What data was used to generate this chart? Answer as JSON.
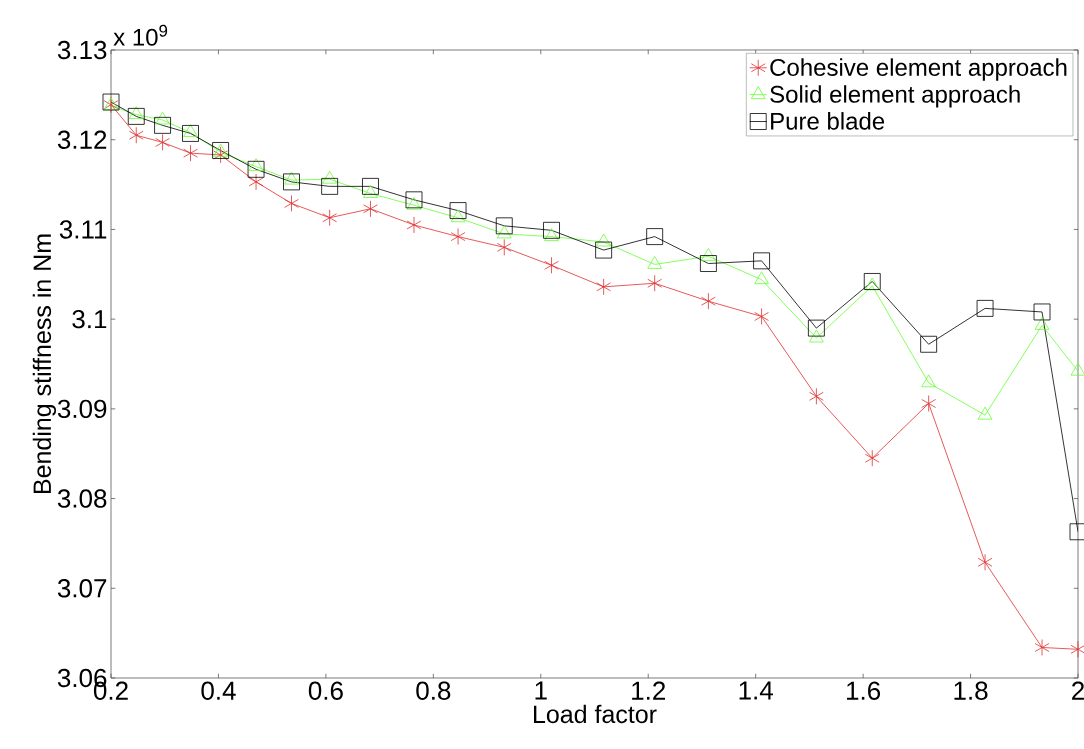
{
  "chart_data": {
    "type": "line",
    "xlabel": "Load factor",
    "ylabel": "Bending stiffness in Nm",
    "annotations": [
      "x 10$^{9}$"
    ],
    "x": [
      0.2,
      0.247,
      0.296,
      0.348,
      0.404,
      0.47,
      0.536,
      0.607,
      0.683,
      0.764,
      0.846,
      0.932,
      1.02,
      1.117,
      1.212,
      1.312,
      1.411,
      1.513,
      1.617,
      1.722,
      1.827,
      1.933,
      2.0
    ],
    "series": [
      {
        "name": "Cohesive element approach",
        "color": "#e03030",
        "marker": "cross",
        "values": [
          3.1239,
          3.1205,
          3.1197,
          3.1185,
          3.1183,
          3.1153,
          3.1129,
          3.1113,
          3.1123,
          3.1105,
          3.1092,
          3.108,
          3.106,
          3.1036,
          3.104,
          3.102,
          3.1003,
          3.0914,
          3.0845,
          3.0906,
          3.0729,
          3.0634,
          3.0632
        ]
      },
      {
        "name": "Solid element approach",
        "color": "#66ff33",
        "marker": "triangle",
        "values": [
          3.1238,
          3.1228,
          3.1222,
          3.1208,
          3.1186,
          3.117,
          3.1155,
          3.1156,
          3.114,
          3.1127,
          3.1113,
          3.1095,
          3.1092,
          3.1086,
          3.1061,
          3.107,
          3.1044,
          3.0979,
          3.1037,
          3.0929,
          3.0893,
          3.0993,
          3.0942
        ]
      },
      {
        "name": "Pure blade",
        "color": "#000000",
        "marker": "square",
        "values": [
          3.1242,
          3.1226,
          3.1216,
          3.1207,
          3.1188,
          3.1167,
          3.1153,
          3.1148,
          3.1148,
          3.1133,
          3.1121,
          3.1104,
          3.1099,
          3.1077,
          3.1092,
          3.1062,
          3.1065,
          3.099,
          3.1042,
          3.0972,
          3.1012,
          3.1008,
          3.0763
        ]
      }
    ],
    "xlim": [
      0.2,
      2
    ],
    "ylim": [
      3.06,
      3.13
    ],
    "xticks": [
      0.2,
      0.4,
      0.6,
      0.8,
      1,
      1.2,
      1.4,
      1.6,
      1.8,
      2
    ],
    "yticks": [
      3.06,
      3.07,
      3.08,
      3.09,
      3.1,
      3.11,
      3.12,
      3.13
    ],
    "legend": "top right",
    "grid": false,
    "line_style": "solid"
  }
}
